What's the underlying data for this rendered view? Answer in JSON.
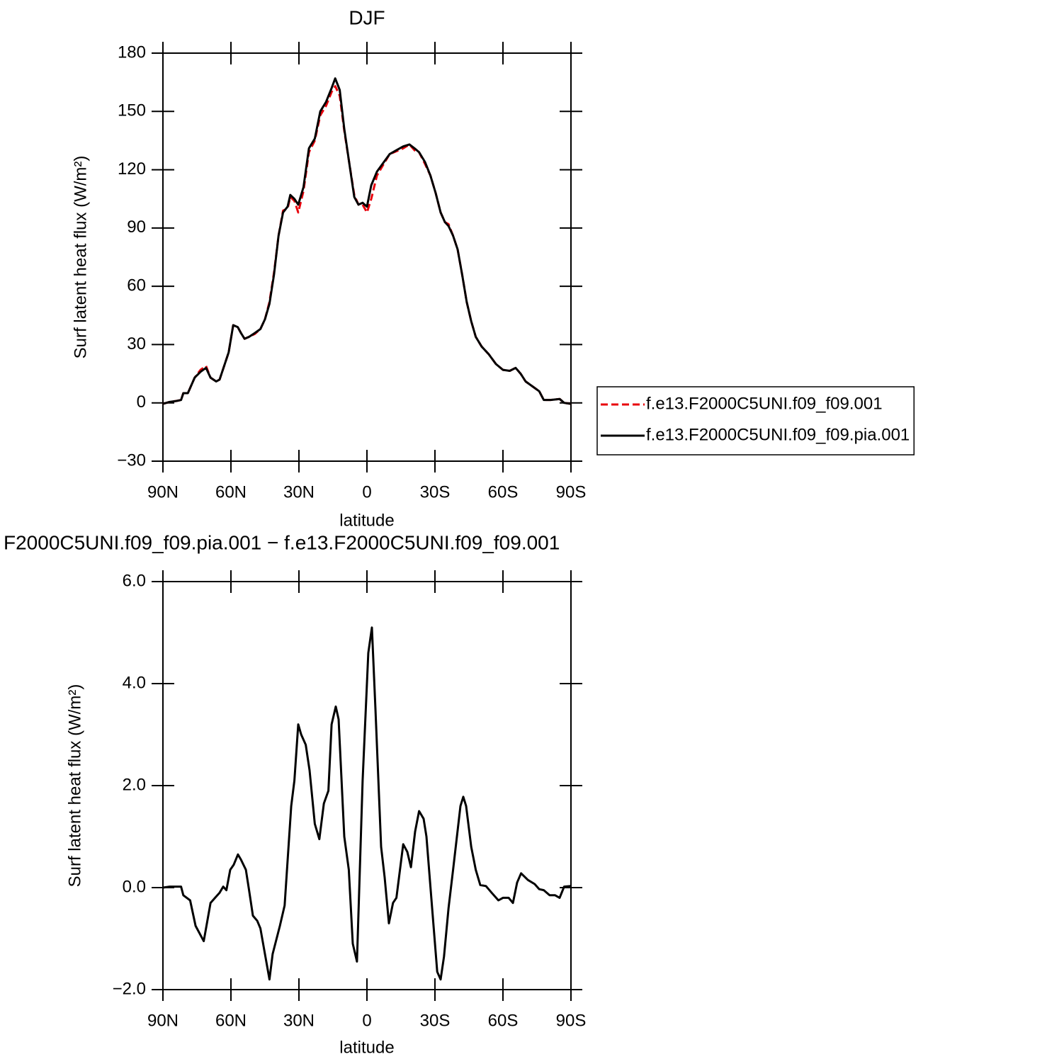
{
  "chart_data": [
    {
      "type": "line",
      "title": "DJF",
      "xlabel": "latitude",
      "ylabel": "Surf latent heat flux (W/m²)",
      "x": [
        90,
        87,
        84,
        82,
        81,
        79,
        76,
        73.4,
        71,
        69,
        66.5,
        65,
        63,
        61,
        59,
        57,
        55.6,
        54,
        52,
        49.4,
        47,
        45,
        43,
        41,
        39,
        37,
        35,
        33.8,
        32,
        30.3,
        28,
        25.6,
        23,
        20.6,
        18,
        15.6,
        14,
        12,
        10,
        8,
        5.6,
        3.75,
        1.9,
        0,
        -1.9,
        -4.4,
        -6.9,
        -10,
        -13,
        -16,
        -18.75,
        -21,
        -23,
        -25.6,
        -28,
        -30.3,
        -32.5,
        -34.4,
        -36,
        -38,
        -40,
        -42,
        -44,
        -46,
        -48,
        -50.6,
        -53.75,
        -56.9,
        -60,
        -63,
        -65.6,
        -67.8,
        -70,
        -73,
        -76,
        -78,
        -81,
        -85,
        -87,
        -90
      ],
      "series": [
        {
          "name": "f.e13.F2000C5UNI.f09_f09.001",
          "color": "#e8000b",
          "linestyle": "dashed",
          "values": [
            -0.5,
            0.5,
            1,
            1.5,
            5,
            5,
            13,
            17,
            19,
            13,
            11,
            12,
            19,
            26,
            40,
            39,
            36,
            33,
            34,
            35.5,
            38,
            43,
            52,
            67,
            86,
            99,
            100,
            106,
            104,
            98,
            109,
            129,
            135,
            148,
            153,
            160,
            163,
            158,
            140,
            125,
            107,
            102,
            102,
            98,
            105,
            117,
            122,
            128,
            129.5,
            131,
            133,
            130,
            129,
            123,
            117,
            108,
            98,
            93,
            92,
            86,
            79,
            66,
            52,
            42,
            34,
            29,
            25,
            20,
            17,
            16.5,
            18,
            15,
            11,
            8.5,
            6,
            1.5,
            1.5,
            2,
            0,
            -0.5
          ]
        },
        {
          "name": "f.e13.F2000C5UNI.f09_f09.pia.001",
          "color": "#000000",
          "linestyle": "solid",
          "values": [
            -0.5,
            0.5,
            1,
            1.5,
            5,
            5,
            13,
            16,
            18,
            13,
            11,
            12,
            19,
            26,
            40,
            39,
            36,
            33,
            34,
            36,
            38,
            43,
            51,
            66,
            86,
            98,
            101,
            107,
            105,
            102,
            111,
            131,
            136,
            150,
            155,
            162,
            167,
            161,
            141,
            125,
            106,
            102,
            103,
            101,
            112,
            119,
            123,
            128,
            130,
            132,
            133,
            131,
            129,
            124,
            117,
            108,
            98,
            93,
            91,
            86,
            79,
            66,
            52,
            42,
            34,
            29,
            25,
            20,
            17,
            16.5,
            18,
            15,
            11,
            8.5,
            6,
            1.5,
            1.5,
            2,
            0,
            -0.5
          ]
        }
      ],
      "xlim": [
        90,
        -90
      ],
      "xticks": [
        {
          "value": 90,
          "label": "90N"
        },
        {
          "value": 60,
          "label": "60N"
        },
        {
          "value": 30,
          "label": "30N"
        },
        0,
        {
          "value": -30,
          "label": "30S"
        },
        {
          "value": -60,
          "label": "60S"
        },
        {
          "value": -90,
          "label": "90S"
        }
      ],
      "ylim": [
        -30,
        180
      ],
      "yticks": [
        {
          "value": -30,
          "label": "−30"
        },
        0,
        30,
        60,
        90,
        120,
        150,
        180
      ],
      "legend": "right"
    },
    {
      "type": "line",
      "title": "F2000C5UNI.f09_f09.pia.001 − f.e13.F2000C5UNI.f09_f09.001",
      "xlabel": "latitude",
      "ylabel": "Surf latent heat flux (W/m²)",
      "x": [
        90,
        87,
        82,
        81,
        78,
        75.6,
        72,
        70.6,
        69,
        67,
        65,
        63.4,
        62,
        60.3,
        58.75,
        56.9,
        55.6,
        53.4,
        52,
        50.3,
        48.4,
        47,
        45,
        43,
        41.6,
        38.4,
        36.3,
        33.4,
        32,
        30.3,
        29,
        27,
        25.3,
        23,
        21,
        19,
        17,
        15.6,
        13.75,
        12.5,
        10,
        8,
        6.25,
        4.4,
        1.9,
        -0.6,
        -2.2,
        -3.75,
        -6.25,
        -7.8,
        -9.7,
        -11.5,
        -13,
        -16,
        -17.8,
        -19.4,
        -21.25,
        -23,
        -25,
        -26.25,
        -28.75,
        -31,
        -32.5,
        -34,
        -36,
        -38,
        -41.25,
        -42.5,
        -43.75,
        -46,
        -48,
        -50,
        -52.5,
        -55,
        -58,
        -60,
        -62.5,
        -64.4,
        -66.25,
        -68,
        -71,
        -74,
        -76,
        -78,
        -80.6,
        -83,
        -85,
        -87,
        -90
      ],
      "series": [
        {
          "name": "f.e13.F2000C5UNI.f09_f09.pia.001 − f.e13.F2000C5UNI.f09_f09.001",
          "color": "#000000",
          "linestyle": "solid",
          "values": [
            0,
            0.02,
            0.02,
            -0.15,
            -0.25,
            -0.75,
            -1.05,
            -0.7,
            -0.3,
            -0.2,
            -0.1,
            0.02,
            -0.05,
            0.35,
            0.45,
            0.65,
            0.55,
            0.35,
            -0.05,
            -0.55,
            -0.65,
            -0.8,
            -1.3,
            -1.8,
            -1.3,
            -0.75,
            -0.35,
            1.6,
            2.1,
            3.2,
            3.0,
            2.8,
            2.3,
            1.25,
            0.95,
            1.65,
            1.9,
            3.2,
            3.55,
            3.3,
            1.0,
            0.35,
            -1.1,
            -1.45,
            2.1,
            4.6,
            5.1,
            3.5,
            0.8,
            0.2,
            -0.7,
            -0.3,
            -0.2,
            0.85,
            0.7,
            0.4,
            1.1,
            1.5,
            1.35,
            1.0,
            -0.4,
            -1.65,
            -1.8,
            -1.35,
            -0.4,
            0.35,
            1.6,
            1.78,
            1.6,
            0.8,
            0.35,
            0.05,
            0.03,
            -0.1,
            -0.25,
            -0.2,
            -0.2,
            -0.3,
            0.1,
            0.28,
            0.15,
            0.07,
            -0.03,
            -0.05,
            -0.15,
            -0.15,
            -0.2,
            0.02,
            0.03
          ]
        }
      ],
      "xlim": [
        90,
        -90
      ],
      "xticks": [
        {
          "value": 90,
          "label": "90N"
        },
        {
          "value": 60,
          "label": "60N"
        },
        {
          "value": 30,
          "label": "30N"
        },
        0,
        {
          "value": -30,
          "label": "30S"
        },
        {
          "value": -60,
          "label": "60S"
        },
        {
          "value": -90,
          "label": "90S"
        }
      ],
      "ylim": [
        -2,
        6
      ],
      "yticks": [
        {
          "value": -2,
          "label": "−2.0"
        },
        {
          "value": 0,
          "label": "0.0"
        },
        {
          "value": 2,
          "label": "2.0"
        },
        {
          "value": 4,
          "label": "4.0"
        },
        {
          "value": 6,
          "label": "6.0"
        }
      ]
    }
  ]
}
